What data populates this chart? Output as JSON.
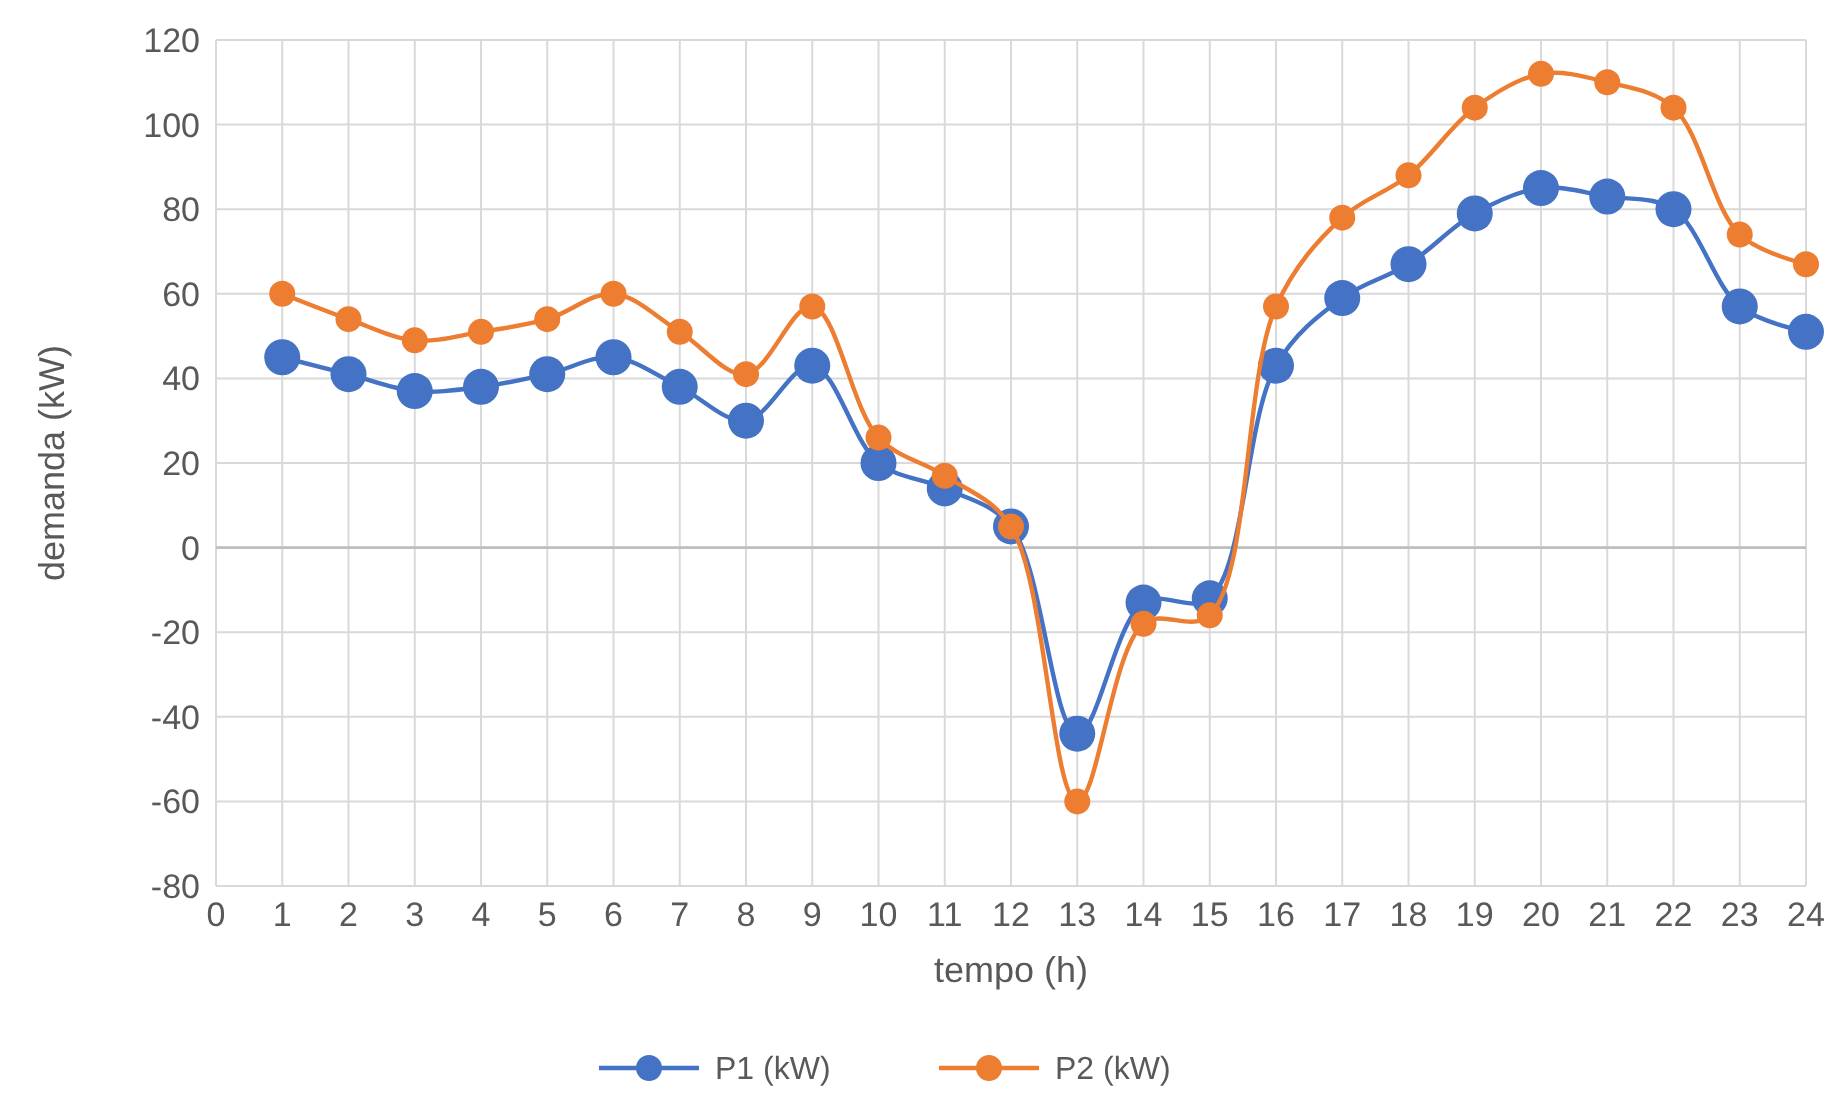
{
  "chart_data": {
    "type": "line",
    "xlabel": "tempo (h)",
    "ylabel": "demanda (kW)",
    "x": [
      1,
      2,
      3,
      4,
      5,
      6,
      7,
      8,
      9,
      10,
      11,
      12,
      13,
      14,
      15,
      16,
      17,
      18,
      19,
      20,
      21,
      22,
      23,
      24
    ],
    "xlim": [
      0,
      24
    ],
    "xticks": [
      0,
      1,
      2,
      3,
      4,
      5,
      6,
      7,
      8,
      9,
      10,
      11,
      12,
      13,
      14,
      15,
      16,
      17,
      18,
      19,
      20,
      21,
      22,
      23,
      24
    ],
    "ylim": [
      -80,
      120
    ],
    "yticks": [
      -80,
      -60,
      -40,
      -20,
      0,
      20,
      40,
      60,
      80,
      100,
      120
    ],
    "grid": true,
    "legend": "bottom",
    "marker": "circle",
    "line_style": "solid",
    "series": [
      {
        "name": "P1 (kW)",
        "color": "#4472c4",
        "values": [
          45,
          41,
          37,
          38,
          41,
          45,
          38,
          30,
          43,
          20,
          14,
          5,
          -44,
          -13,
          -12,
          43,
          59,
          67,
          79,
          85,
          83,
          80,
          57,
          51
        ]
      },
      {
        "name": "P2 (kW)",
        "color": "#ed7d31",
        "values": [
          60,
          54,
          49,
          51,
          54,
          60,
          51,
          41,
          57,
          26,
          17,
          5,
          -60,
          -18,
          -16,
          57,
          78,
          88,
          104,
          112,
          110,
          104,
          74,
          67
        ]
      }
    ]
  }
}
